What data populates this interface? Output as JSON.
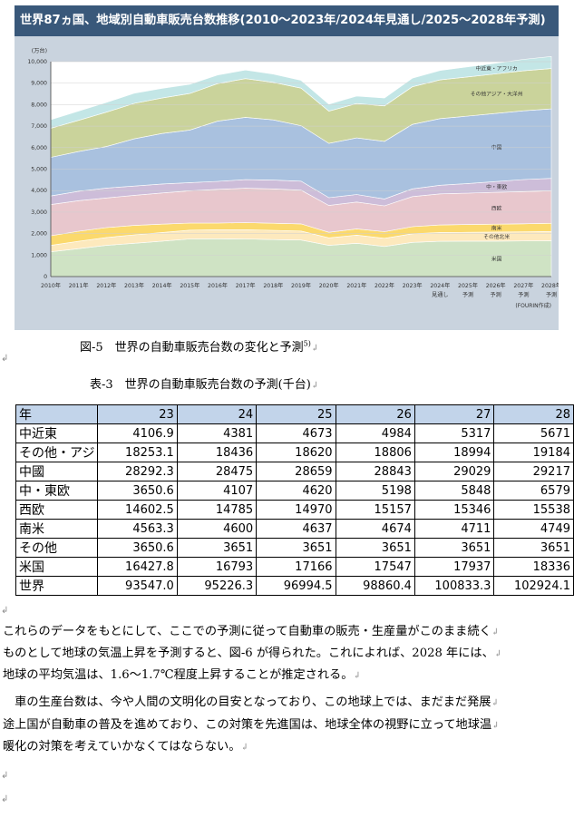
{
  "figure": {
    "title": "世界87ヵ国、地域別自動車販売台数推移(2010～2023年/2024年見通し/2025～2028年予測)",
    "chart_data": {
      "type": "area",
      "stacked": true,
      "unit_label": "(万台)",
      "source": "(FOURIN作成)",
      "ylim": [
        0,
        10000
      ],
      "yticks": [
        "0",
        "1,000",
        "2,000",
        "3,000",
        "4,000",
        "5,000",
        "6,000",
        "7,000",
        "8,000",
        "9,000",
        "10,000"
      ],
      "x": [
        "2010年",
        "2011年",
        "2012年",
        "2013年",
        "2014年",
        "2015年",
        "2016年",
        "2017年",
        "2018年",
        "2019年",
        "2020年",
        "2021年",
        "2022年",
        "2023年",
        "2024年",
        "2025年",
        "2026年",
        "2027年",
        "2028年"
      ],
      "x_sub": [
        "",
        "",
        "",
        "",
        "",
        "",
        "",
        "",
        "",
        "",
        "",
        "",
        "",
        "",
        "見通し",
        "予測",
        "予測",
        "予測",
        "予測"
      ],
      "series": [
        {
          "name": "米国",
          "color": "#cfe3c4",
          "values": [
            1150,
            1300,
            1450,
            1550,
            1650,
            1750,
            1760,
            1750,
            1720,
            1700,
            1450,
            1550,
            1400,
            1590,
            1640,
            1650,
            1650,
            1660,
            1670
          ]
        },
        {
          "name": "その他北米",
          "color": "#fde9bd",
          "values": [
            300,
            340,
            370,
            390,
            400,
            410,
            420,
            430,
            430,
            420,
            350,
            380,
            380,
            400,
            410,
            410,
            420,
            420,
            430
          ]
        },
        {
          "name": "南米",
          "color": "#fbd96d",
          "values": [
            450,
            470,
            460,
            440,
            390,
            330,
            310,
            330,
            330,
            330,
            260,
            290,
            310,
            330,
            350,
            360,
            370,
            375,
            380
          ]
        },
        {
          "name": "西欧",
          "color": "#e8c7cd",
          "values": [
            1450,
            1420,
            1380,
            1400,
            1450,
            1500,
            1570,
            1600,
            1600,
            1570,
            1250,
            1250,
            1200,
            1400,
            1450,
            1460,
            1480,
            1500,
            1510
          ]
        },
        {
          "name": "中・東欧",
          "color": "#cdbdd9",
          "values": [
            400,
            440,
            460,
            430,
            420,
            380,
            370,
            400,
            410,
            420,
            360,
            350,
            320,
            360,
            400,
            450,
            500,
            560,
            580
          ]
        },
        {
          "name": "中国",
          "color": "#a9c1df",
          "values": [
            1800,
            1850,
            1930,
            2200,
            2350,
            2450,
            2800,
            2900,
            2800,
            2580,
            2530,
            2630,
            2680,
            3000,
            3100,
            3140,
            3170,
            3200,
            3230
          ]
        },
        {
          "name": "その他アジア・大洋州",
          "color": "#cad39b",
          "values": [
            1350,
            1450,
            1600,
            1650,
            1650,
            1700,
            1750,
            1800,
            1750,
            1750,
            1500,
            1600,
            1650,
            1750,
            1800,
            1820,
            1840,
            1860,
            1880
          ]
        },
        {
          "name": "中近東・アフリカ",
          "color": "#c3e6e6",
          "values": [
            400,
            430,
            450,
            470,
            450,
            430,
            400,
            400,
            380,
            360,
            320,
            350,
            370,
            400,
            440,
            470,
            500,
            530,
            560
          ]
        }
      ]
    },
    "caption": "図-5　世界の自動車販売台数の変化と予測",
    "caption_ref": "5)"
  },
  "table": {
    "caption": "表-3　世界の自動車販売台数の予測(千台)",
    "header": [
      "年",
      "23",
      "24",
      "25",
      "26",
      "27",
      "28"
    ],
    "rows": [
      [
        "中近東",
        "4106.9",
        "4381",
        "4673",
        "4984",
        "5317",
        "5671"
      ],
      [
        "その他・アジ",
        "18253.1",
        "18436",
        "18620",
        "18806",
        "18994",
        "19184"
      ],
      [
        "中國",
        "28292.3",
        "28475",
        "28659",
        "28843",
        "29029",
        "29217"
      ],
      [
        "中・東欧",
        "3650.6",
        "4107",
        "4620",
        "5198",
        "5848",
        "6579"
      ],
      [
        "西欧",
        "14602.5",
        "14785",
        "14970",
        "15157",
        "15346",
        "15538"
      ],
      [
        "南米",
        "4563.3",
        "4600",
        "4637",
        "4674",
        "4711",
        "4749"
      ],
      [
        "その他",
        "3650.6",
        "3651",
        "3651",
        "3651",
        "3651",
        "3651"
      ],
      [
        "米国",
        "16427.8",
        "16793",
        "17166",
        "17547",
        "17937",
        "18336"
      ],
      [
        "世界",
        "93547.0",
        "95226.3",
        "96994.5",
        "98860.4",
        "100833.3",
        "102924.1"
      ]
    ]
  },
  "body": {
    "lines": [
      "これらのデータをもとにして、ここでの予測に従って自動車の販売・生産量がこのまま続く",
      "ものとして地球の気温上昇を予測すると、図-6 が得られた。これによれば、2028 年には、",
      "地球の平均気温は、1.6～1.7℃程度上昇することが推定される。",
      "　車の生産台数は、今や人間の文明化の目安となっており、この地球上では、まだまだ発展",
      "途上国が自動車の普及を進めており、この対策を先進国は、地球全体の視野に立って地球温",
      "暖化の対策を考えていかなくてはならない。"
    ]
  },
  "marks": {
    "para": "↵",
    "arrow": "↲"
  }
}
